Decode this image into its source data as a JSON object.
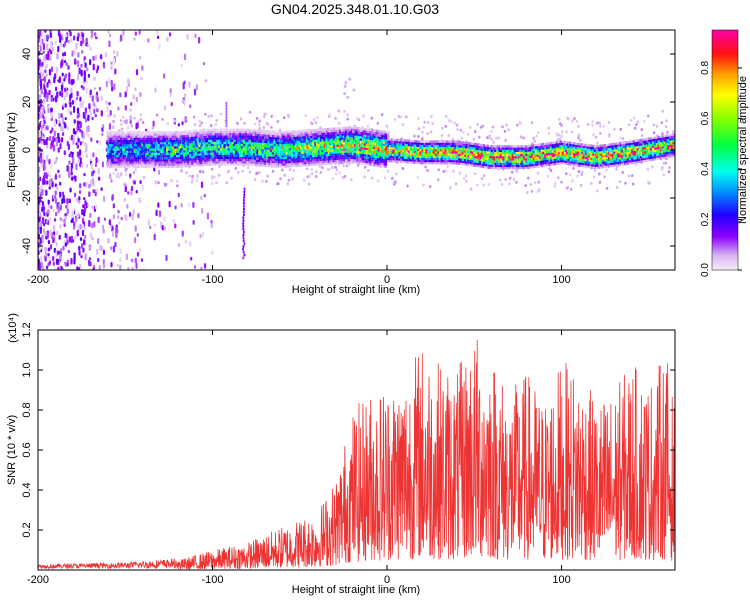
{
  "figure": {
    "title": "GN04.2025.348.01.10.G03"
  },
  "chart_data": [
    {
      "type": "heatmap",
      "title": "GN04.2025.348.01.10.G03",
      "xlabel": "Height of straight line (km)",
      "ylabel": "Frequency (Hz)",
      "xlim": [
        -200,
        165
      ],
      "ylim": [
        -50,
        50
      ],
      "xticks": [
        "-200",
        "-100",
        "0",
        "100"
      ],
      "yticks": [
        "-40",
        "-20",
        "0",
        "20",
        "40"
      ],
      "grid": false,
      "colorbar": {
        "label": "Normalized spectral amplitude",
        "range": [
          0,
          0.95
        ],
        "ticks": [
          "0.0",
          "0.2",
          "0.4",
          "0.6",
          "0.8"
        ],
        "colors": [
          "#f2e6f7",
          "#cc99ee",
          "#8800ff",
          "#0000ff",
          "#00aaff",
          "#00ffcc",
          "#00ff00",
          "#aaff00",
          "#ffff00",
          "#ff9900",
          "#ff0000",
          "#ff00aa"
        ]
      },
      "signal_trace": {
        "description_units": "Hz",
        "x": [
          -160,
          -140,
          -120,
          -100,
          -80,
          -60,
          -40,
          -20,
          0,
          20,
          40,
          60,
          80,
          100,
          120,
          140,
          165
        ],
        "center": [
          0,
          0,
          0,
          1,
          1,
          0,
          1,
          2,
          0,
          -1,
          -1,
          -3,
          -3,
          -1,
          -3,
          -1,
          2
        ],
        "peak_amplitude": [
          0.4,
          0.4,
          0.5,
          0.5,
          0.5,
          0.55,
          0.6,
          0.7,
          0.8,
          0.85,
          0.9,
          0.95,
          0.9,
          0.95,
          0.9,
          0.9,
          0.85
        ]
      },
      "annotations": {
        "spike_x": -82,
        "spike_freq_range": [
          -45,
          -15
        ],
        "spike2_x": -92,
        "spike2_freq_range": [
          10,
          20
        ]
      }
    },
    {
      "type": "line",
      "xlabel": "Height of straight line (km)",
      "ylabel": "SNR (10 * v/v)",
      "yscale_label": "(x10⁴)",
      "xlim": [
        -200,
        165
      ],
      "ylim": [
        0,
        1.2
      ],
      "xticks": [
        "-200",
        "-100",
        "0",
        "100"
      ],
      "yticks": [
        "0.2",
        "0.4",
        "0.6",
        "0.8",
        "1.0",
        "1.2"
      ],
      "grid": false,
      "series": [
        {
          "color": "#ee3333",
          "envelope_x": [
            -200,
            -150,
            -120,
            -100,
            -80,
            -60,
            -40,
            -30,
            -20,
            -10,
            0,
            10,
            20,
            30,
            40,
            50,
            60,
            70,
            80,
            90,
            100,
            110,
            120,
            130,
            140,
            150,
            160,
            165
          ],
          "envelope_max": [
            0.02,
            0.03,
            0.05,
            0.1,
            0.14,
            0.22,
            0.3,
            0.45,
            0.8,
            0.9,
            0.95,
            1.0,
            1.15,
            1.05,
            1.0,
            1.2,
            1.1,
            0.9,
            1.0,
            0.85,
            1.05,
            1.0,
            0.85,
            0.9,
            1.05,
            0.95,
            1.1,
            0.8
          ]
        }
      ]
    }
  ]
}
